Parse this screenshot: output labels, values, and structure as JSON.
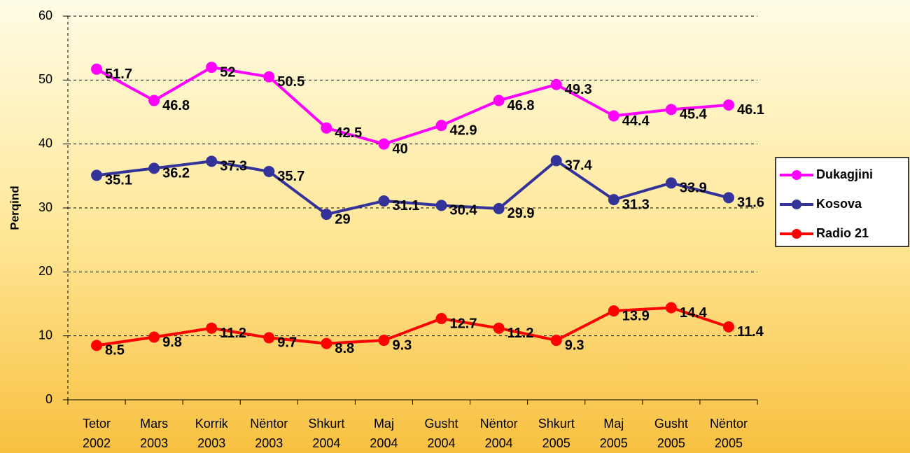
{
  "chart_data": {
    "type": "line",
    "y_label": "Perqind",
    "categories": [
      "Tetor 2002",
      "Mars 2003",
      "Korrik 2003",
      "Nëntor 2003",
      "Shkurt 2004",
      "Maj 2004",
      "Gusht 2004",
      "Nëntor 2004",
      "Shkurt 2005",
      "Maj 2005",
      "Gusht 2005",
      "Nëntor 2005"
    ],
    "series": [
      {
        "name": "Dukagjini",
        "color": "#ff00ff",
        "values": [
          51.7,
          46.8,
          52,
          50.5,
          42.5,
          40,
          42.9,
          46.8,
          49.3,
          44.4,
          45.4,
          46.1
        ]
      },
      {
        "name": "Kosova",
        "color": "#333399",
        "values": [
          35.1,
          36.2,
          37.3,
          35.7,
          29,
          31.1,
          30.4,
          29.9,
          37.4,
          31.3,
          33.9,
          31.6
        ]
      },
      {
        "name": "Radio 21",
        "color": "#ff0000",
        "values": [
          8.5,
          9.8,
          11.2,
          9.7,
          8.8,
          9.3,
          12.7,
          11.2,
          9.3,
          13.9,
          14.4,
          11.4
        ]
      }
    ],
    "ylim": [
      0,
      60
    ],
    "yticks": [
      0,
      10,
      20,
      30,
      40,
      50,
      60
    ],
    "grid": true,
    "legend": "right"
  }
}
